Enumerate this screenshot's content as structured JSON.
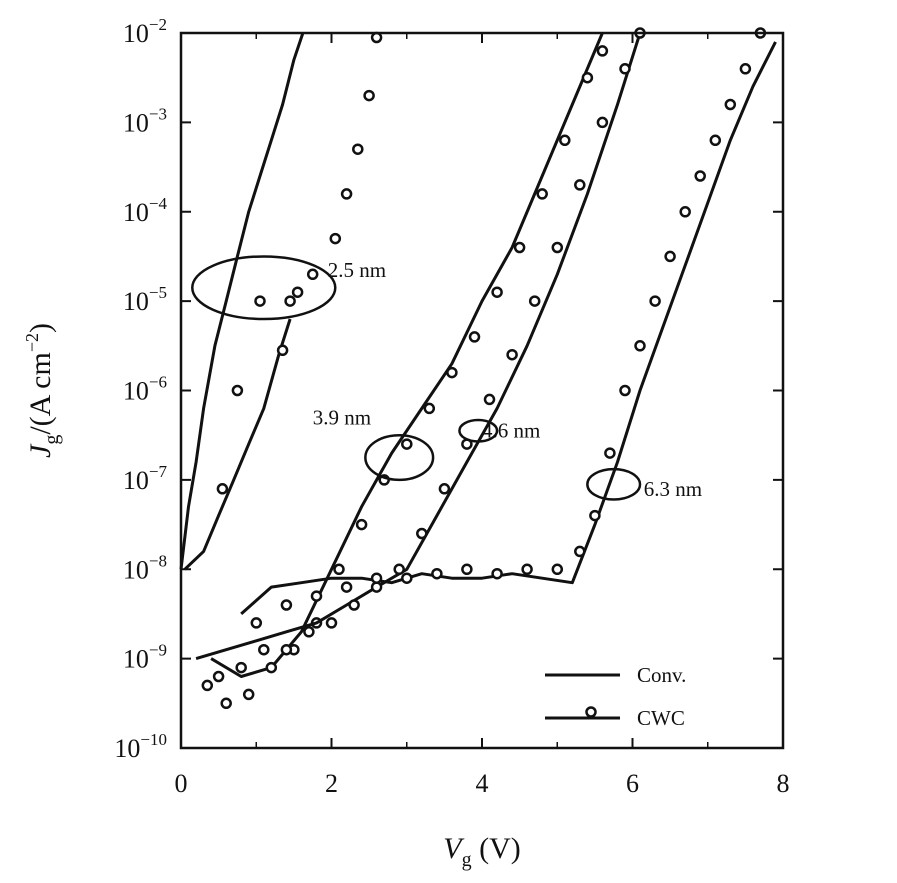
{
  "chart_data": {
    "type": "line",
    "title": "",
    "xlabel_main": "V",
    "xlabel_sub": "g",
    "xlabel_unit": " (V)",
    "ylabel_main": "J",
    "ylabel_sub": "g",
    "ylabel_unit": "/(A cm",
    "ylabel_sup": "−2",
    "ylabel_close": ")",
    "xlim": [
      0,
      8
    ],
    "ylim_log10": [
      -10,
      -2
    ],
    "x_ticks": [
      0,
      2,
      4,
      6,
      8
    ],
    "x_tick_labels": [
      "0",
      "2",
      "4",
      "6",
      "8"
    ],
    "y_ticks_log10": [
      -10,
      -9,
      -8,
      -7,
      -6,
      -5,
      -4,
      -3,
      -2
    ],
    "y_tick_base": "10",
    "y_tick_exps": [
      "−10",
      "−9",
      "−8",
      "−7",
      "−6",
      "−5",
      "−4",
      "−3",
      "−2"
    ],
    "grid": false,
    "legend_position": "bottom-right",
    "legend": [
      {
        "label": "Conv.",
        "style": "line"
      },
      {
        "label": "CWC",
        "style": "line-with-circles"
      }
    ],
    "annotations": [
      {
        "text": "2.5 nm",
        "x": 1.95,
        "log10y": -4.65
      },
      {
        "text": "3.9 nm",
        "x": 1.75,
        "log10y": -6.3
      },
      {
        "text": "4.6 nm",
        "x": 4.0,
        "log10y": -6.45
      },
      {
        "text": "6.3 nm",
        "x": 6.15,
        "log10y": -7.1
      }
    ],
    "annotation_ellipses": [
      {
        "cx": 1.1,
        "cy": -4.85,
        "rx": 0.95,
        "ry": 0.35
      },
      {
        "cx": 2.9,
        "cy": -6.75,
        "rx": 0.45,
        "ry": 0.25
      },
      {
        "cx": 3.95,
        "cy": -6.45,
        "rx": 0.25,
        "ry": 0.12
      },
      {
        "cx": 5.75,
        "cy": -7.05,
        "rx": 0.35,
        "ry": 0.17
      }
    ],
    "series": [
      {
        "name": "2.5 nm Conv. (steep)",
        "style": "line",
        "x": [
          0.0,
          0.1,
          0.2,
          0.3,
          0.45,
          0.6,
          0.75,
          0.9,
          1.05,
          1.2,
          1.35,
          1.5,
          1.62
        ],
        "log10y": [
          -8.0,
          -7.3,
          -6.8,
          -6.2,
          -5.5,
          -5.0,
          -4.5,
          -4.0,
          -3.6,
          -3.2,
          -2.8,
          -2.3,
          -2.0
        ]
      },
      {
        "name": "2.5 nm Conv. (shallow)",
        "style": "line",
        "x": [
          0.05,
          0.3,
          0.5,
          0.7,
          0.9,
          1.1,
          1.3,
          1.45
        ],
        "log10y": [
          -8.0,
          -7.8,
          -7.4,
          -7.0,
          -6.6,
          -6.2,
          -5.6,
          -5.2
        ]
      },
      {
        "name": "2.5 nm CWC",
        "style": "circles",
        "x": [
          0.55,
          0.75,
          1.05,
          1.35,
          1.45,
          1.55,
          1.75,
          2.05,
          2.2,
          2.35,
          2.5,
          2.6
        ],
        "log10y": [
          -7.1,
          -6.0,
          -5.0,
          -5.55,
          -5.0,
          -4.9,
          -4.7,
          -4.3,
          -3.8,
          -3.3,
          -2.7,
          -2.05
        ]
      },
      {
        "name": "3.9 nm Conv.",
        "style": "line",
        "x": [
          0.4,
          0.8,
          1.2,
          1.6,
          2.0,
          2.4,
          2.8,
          3.2,
          3.6,
          4.0,
          4.4,
          4.8,
          5.2,
          5.6
        ],
        "log10y": [
          -9.0,
          -9.2,
          -9.1,
          -8.7,
          -8.0,
          -7.3,
          -6.7,
          -6.2,
          -5.7,
          -5.0,
          -4.4,
          -3.6,
          -2.8,
          -2.0
        ]
      },
      {
        "name": "3.9 nm CWC",
        "style": "circles",
        "x": [
          0.35,
          0.6,
          0.9,
          1.2,
          1.5,
          1.8,
          2.1,
          2.4,
          2.7,
          3.0,
          3.3,
          3.6,
          3.9,
          4.2,
          4.5,
          4.8,
          5.1,
          5.4,
          5.6
        ],
        "log10y": [
          -9.3,
          -9.5,
          -9.4,
          -9.1,
          -8.9,
          -8.6,
          -8.0,
          -7.5,
          -7.0,
          -6.6,
          -6.2,
          -5.8,
          -5.4,
          -4.9,
          -4.4,
          -3.8,
          -3.2,
          -2.5,
          -2.2
        ]
      },
      {
        "name": "4.6 nm Conv.",
        "style": "line",
        "x": [
          0.2,
          0.6,
          1.0,
          1.4,
          1.8,
          2.2,
          2.6,
          3.0,
          3.4,
          3.8,
          4.2,
          4.6,
          5.0,
          5.4,
          5.8,
          6.1
        ],
        "log10y": [
          -9.0,
          -8.9,
          -8.8,
          -8.7,
          -8.6,
          -8.4,
          -8.2,
          -8.0,
          -7.4,
          -6.8,
          -6.2,
          -5.5,
          -4.7,
          -3.8,
          -2.8,
          -2.0
        ]
      },
      {
        "name": "4.6 nm CWC",
        "style": "circles",
        "x": [
          0.5,
          0.8,
          1.1,
          1.4,
          1.7,
          2.0,
          2.3,
          2.6,
          2.9,
          3.2,
          3.5,
          3.8,
          4.1,
          4.4,
          4.7,
          5.0,
          5.3,
          5.6,
          5.9,
          6.1
        ],
        "log10y": [
          -9.2,
          -9.1,
          -8.9,
          -8.9,
          -8.7,
          -8.6,
          -8.4,
          -8.2,
          -8.0,
          -7.6,
          -7.1,
          -6.6,
          -6.1,
          -5.6,
          -5.0,
          -4.4,
          -3.7,
          -3.0,
          -2.4,
          -2.0
        ]
      },
      {
        "name": "6.3 nm Conv.",
        "style": "line",
        "x": [
          0.8,
          1.2,
          1.6,
          2.0,
          2.4,
          2.8,
          3.2,
          3.6,
          4.0,
          4.4,
          4.8,
          5.2,
          5.5,
          5.8,
          6.1,
          6.4,
          6.7,
          7.0,
          7.3,
          7.6,
          7.9
        ],
        "log10y": [
          -8.5,
          -8.2,
          -8.15,
          -8.1,
          -8.1,
          -8.15,
          -8.05,
          -8.1,
          -8.1,
          -8.05,
          -8.1,
          -8.15,
          -7.5,
          -6.8,
          -6.0,
          -5.3,
          -4.6,
          -3.9,
          -3.2,
          -2.6,
          -2.1
        ]
      },
      {
        "name": "6.3 nm CWC",
        "style": "circles",
        "x": [
          1.0,
          1.4,
          1.8,
          2.2,
          2.6,
          3.0,
          3.4,
          3.8,
          4.2,
          4.6,
          5.0,
          5.3,
          5.5,
          5.7,
          5.9,
          6.1,
          6.3,
          6.5,
          6.7,
          6.9,
          7.1,
          7.3,
          7.5,
          7.7
        ],
        "log10y": [
          -8.6,
          -8.4,
          -8.3,
          -8.2,
          -8.1,
          -8.1,
          -8.05,
          -8.0,
          -8.05,
          -8.0,
          -8.0,
          -7.8,
          -7.4,
          -6.7,
          -6.0,
          -5.5,
          -5.0,
          -4.5,
          -4.0,
          -3.6,
          -3.2,
          -2.8,
          -2.4,
          -2.0
        ]
      }
    ]
  }
}
